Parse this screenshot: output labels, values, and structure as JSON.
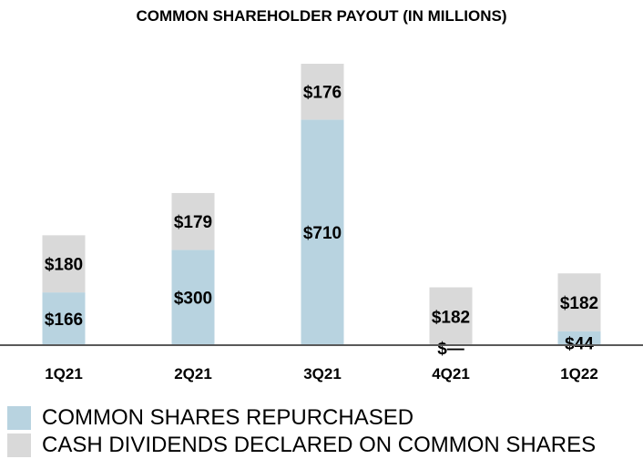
{
  "chart_data": {
    "type": "bar",
    "stacked": true,
    "title": "COMMON SHAREHOLDER PAYOUT (IN MILLIONS)",
    "categories": [
      "1Q21",
      "2Q21",
      "3Q21",
      "4Q21",
      "1Q22"
    ],
    "series": [
      {
        "name": "COMMON SHARES REPURCHASED",
        "values": [
          166,
          300,
          710,
          0,
          44
        ],
        "labels": [
          "$166",
          "$300",
          "$710",
          "$—",
          "$44"
        ],
        "color": "#b8d3e0"
      },
      {
        "name": "CASH DIVIDENDS DECLARED ON COMMON SHARES",
        "values": [
          180,
          179,
          176,
          182,
          182
        ],
        "labels": [
          "$180",
          "$179",
          "$176",
          "$182",
          "$182"
        ],
        "color": "#d9d9d9"
      }
    ],
    "ylim": [
      0,
      886
    ],
    "grid": false,
    "legend": "bottom-left",
    "axis_color": "#595959"
  }
}
